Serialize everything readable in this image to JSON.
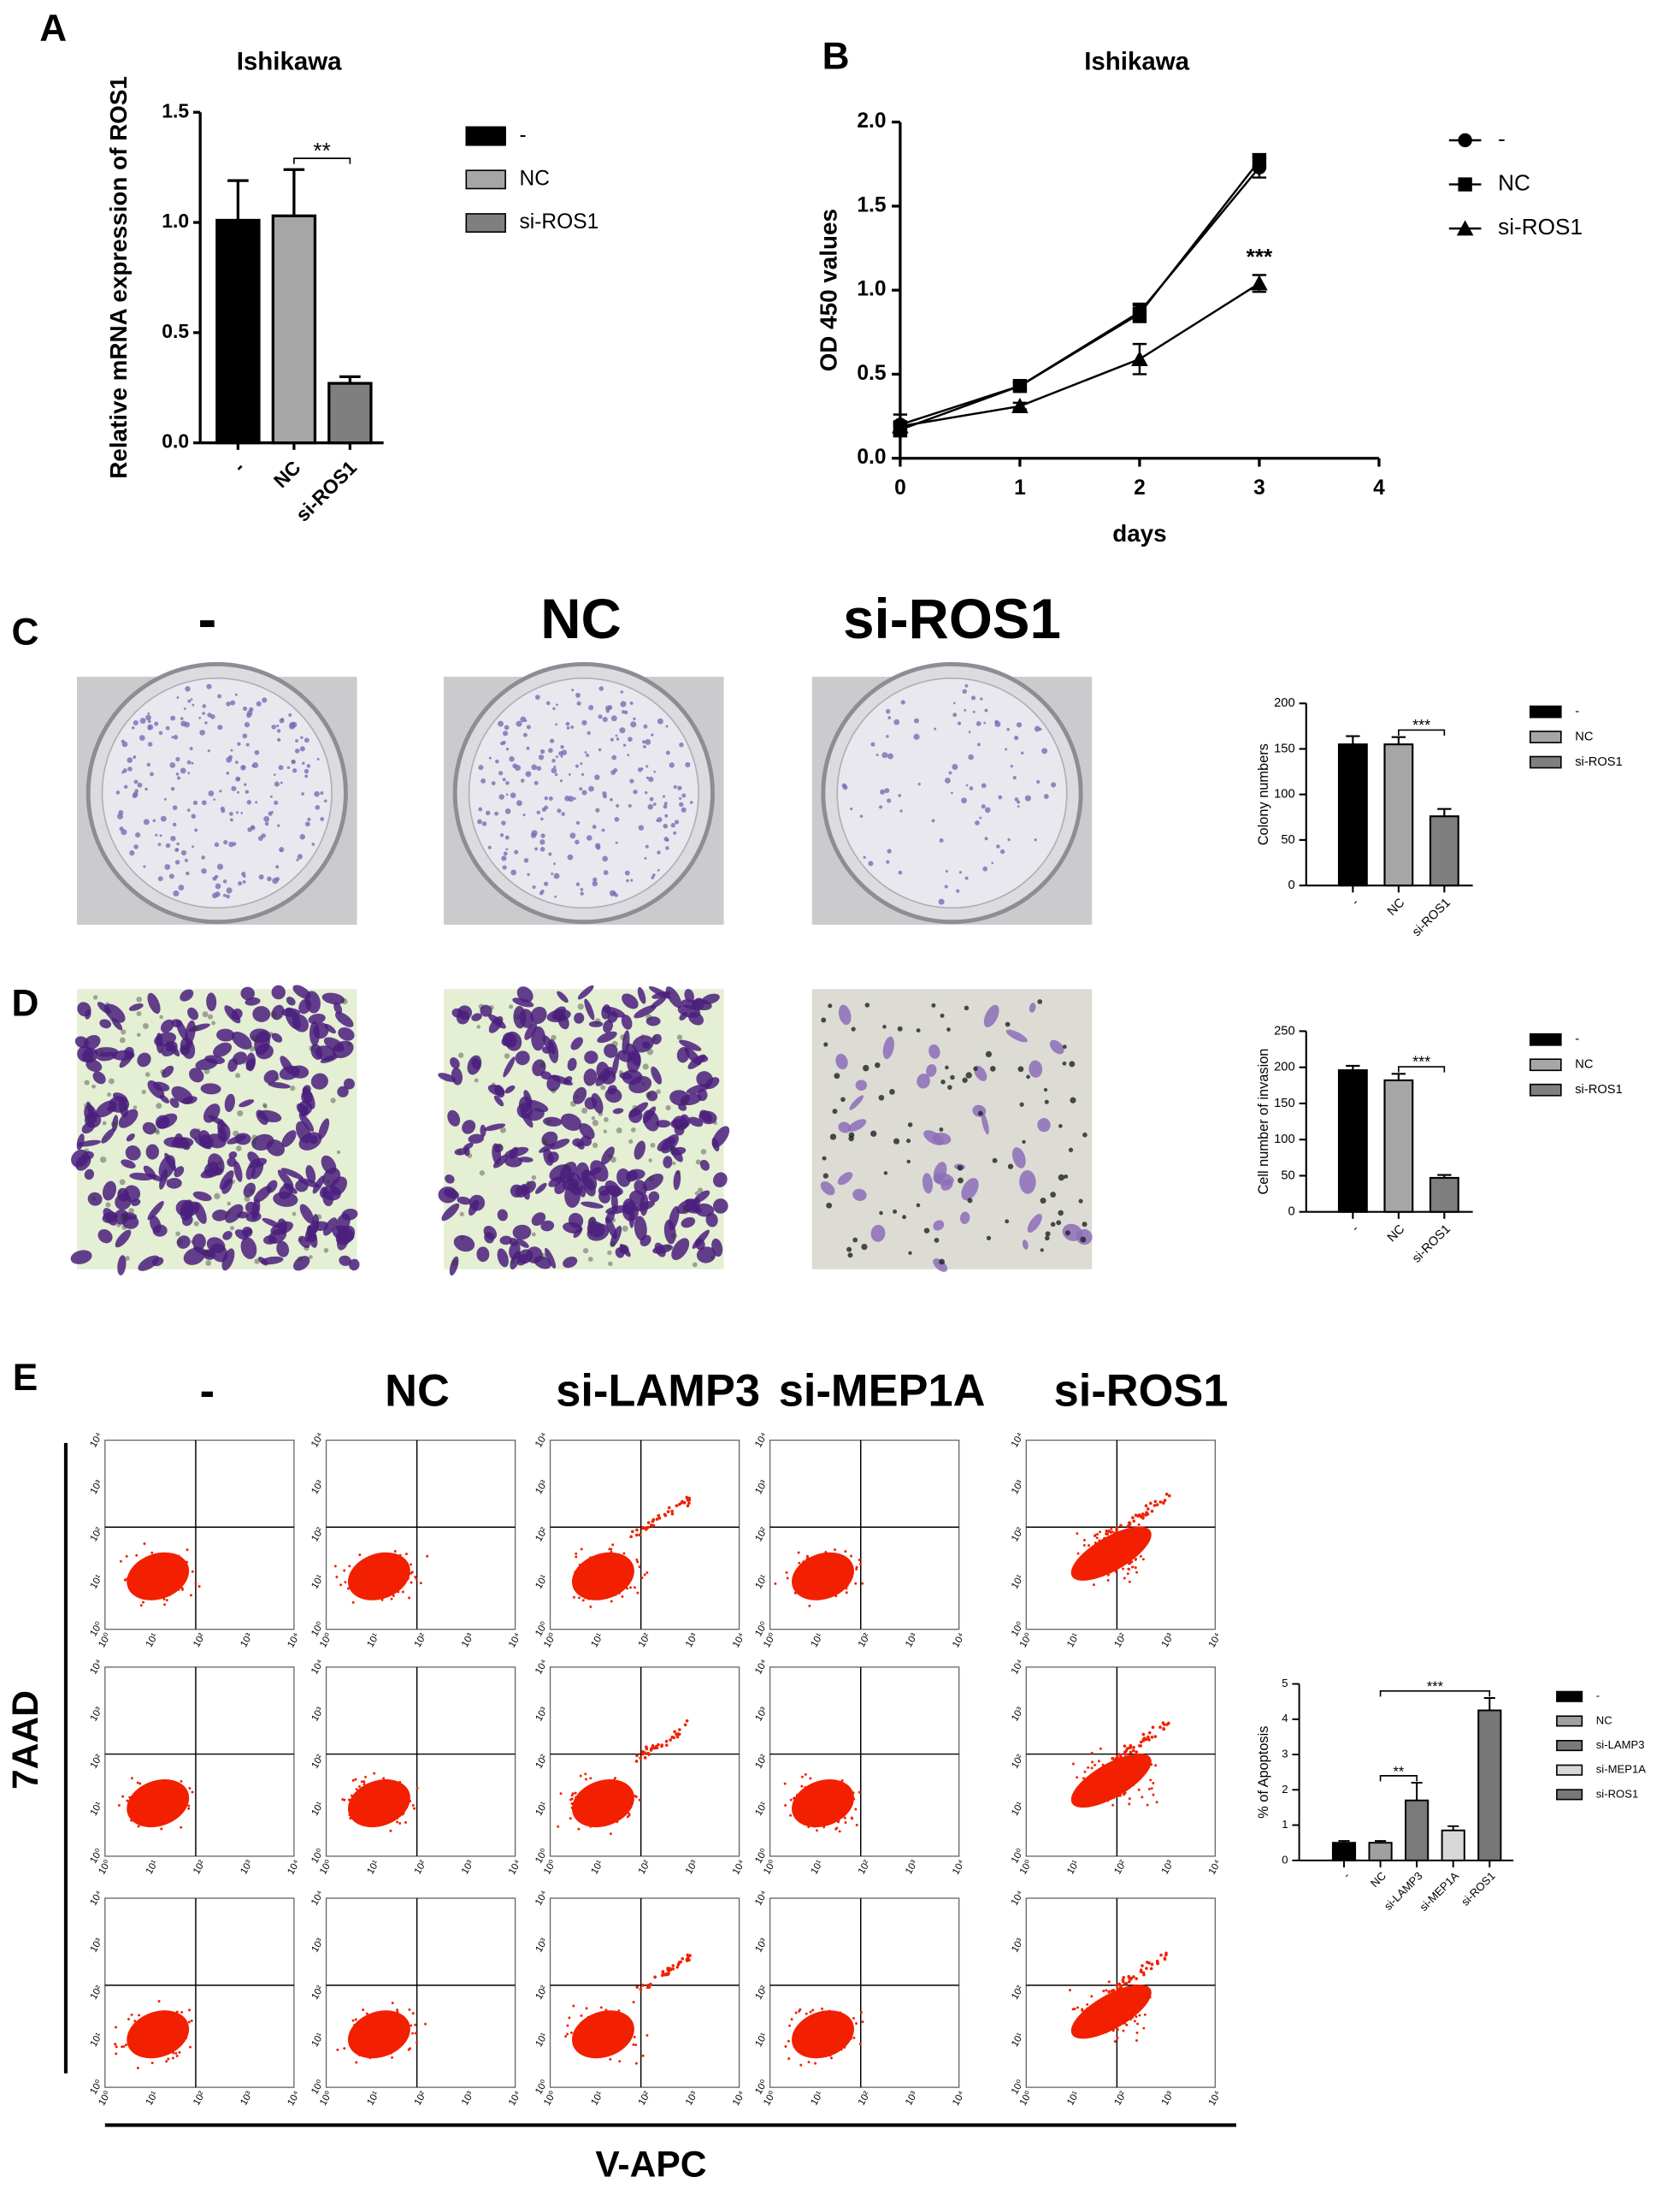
{
  "figure": {
    "panel_labels": [
      "A",
      "B",
      "C",
      "D",
      "E"
    ],
    "c_columns": [
      "-",
      "NC",
      "si-ROS1"
    ],
    "e_columns": [
      "-",
      "NC",
      "si-LAMP3",
      "si-MEP1A",
      "si-ROS1"
    ],
    "e_y_label": "7AAD",
    "e_x_label": "V-APC",
    "flow_ticks": [
      "10⁰",
      "10¹",
      "10²",
      "10³",
      "10⁴"
    ]
  },
  "chart_data": [
    {
      "type": "bar",
      "title": "Ishikawa",
      "y_label": "Relative mRNA expression of  ROS1",
      "categories": [
        "-",
        "NC",
        "si-ROS1"
      ],
      "values": [
        1.01,
        1.03,
        0.27
      ],
      "errors": [
        0.18,
        0.21,
        0.03
      ],
      "colors": [
        "#000000",
        "#a6a6a6",
        "#7f7f7f"
      ],
      "ylim": [
        0,
        1.5
      ],
      "yticks": [
        {
          "value": 0,
          "label": "0.0"
        },
        {
          "value": 0.5,
          "label": "0.5"
        },
        {
          "value": 1,
          "label": "1.0"
        },
        {
          "value": 1.5,
          "label": "1.5"
        }
      ],
      "annotations": [
        {
          "text": "**",
          "between": [
            "NC",
            "si-ROS1"
          ]
        }
      ],
      "legend": "right"
    },
    {
      "type": "line",
      "title": "Ishikawa",
      "x_label": "days",
      "y_label": "OD 450 values",
      "x": [
        0,
        1,
        2,
        3
      ],
      "series": [
        {
          "name": "-",
          "marker": "circle",
          "color": "#000000",
          "values": [
            0.2,
            0.43,
            0.87,
            1.73
          ],
          "errors": [
            0.06,
            0.02,
            0.05,
            0.06
          ]
        },
        {
          "name": "NC",
          "marker": "square",
          "color": "#000000",
          "values": [
            0.17,
            0.43,
            0.86,
            1.77
          ],
          "errors": [
            0.04,
            0.02,
            0.05,
            0.04
          ]
        },
        {
          "name": "si-ROS1",
          "marker": "triangle",
          "color": "#000000",
          "values": [
            0.19,
            0.31,
            0.59,
            1.04
          ],
          "errors": [
            0.03,
            0.02,
            0.09,
            0.05
          ]
        }
      ],
      "xlim": [
        0,
        4
      ],
      "xticks": [
        0,
        1,
        2,
        3,
        4
      ],
      "ylim": [
        0,
        2
      ],
      "yticks": [
        {
          "value": 0,
          "label": "0.0"
        },
        {
          "value": 0.5,
          "label": "0.5"
        },
        {
          "value": 1,
          "label": "1.0"
        },
        {
          "value": 1.5,
          "label": "1.5"
        },
        {
          "value": 2,
          "label": "2.0"
        }
      ],
      "annotations": [
        {
          "text": "***",
          "x": 3
        }
      ],
      "legend": "right"
    },
    {
      "type": "bar",
      "y_label": "Colony numbers",
      "categories": [
        "-",
        "NC",
        "si-ROS1"
      ],
      "values": [
        155,
        155,
        76
      ],
      "errors": [
        9,
        8,
        8
      ],
      "colors": [
        "#000000",
        "#a6a6a6",
        "#7f7f7f"
      ],
      "ylim": [
        0,
        200
      ],
      "yticks": [
        0,
        50,
        100,
        150,
        200
      ],
      "annotations": [
        {
          "text": "***",
          "between": [
            "NC",
            "si-ROS1"
          ]
        }
      ],
      "legend": "right"
    },
    {
      "type": "bar",
      "y_label": "Cell number of invasion",
      "categories": [
        "-",
        "NC",
        "si-ROS1"
      ],
      "values": [
        196,
        182,
        47
      ],
      "errors": [
        6,
        9,
        4
      ],
      "colors": [
        "#000000",
        "#a6a6a6",
        "#7f7f7f"
      ],
      "ylim": [
        0,
        250
      ],
      "yticks": [
        0,
        50,
        100,
        150,
        200,
        250
      ],
      "annotations": [
        {
          "text": "***",
          "between": [
            "NC",
            "si-ROS1"
          ]
        }
      ],
      "legend": "right"
    },
    {
      "type": "bar",
      "y_label": "% of Apoptosis",
      "categories": [
        "-",
        "NC",
        "si-LAMP3",
        "si-MEP1A",
        "si-ROS1"
      ],
      "values": [
        0.5,
        0.5,
        1.7,
        0.85,
        4.25
      ],
      "errors": [
        0.05,
        0.05,
        0.5,
        0.12,
        0.35
      ],
      "colors": [
        "#000000",
        "#a0a0a0",
        "#7a7a7a",
        "#d8d8d8",
        "#777777"
      ],
      "ylim": [
        0,
        5
      ],
      "yticks": [
        0,
        1,
        2,
        3,
        4,
        5
      ],
      "annotations": [
        {
          "text": "***",
          "between": [
            "NC",
            "si-ROS1"
          ]
        },
        {
          "text": "**",
          "between": [
            "NC",
            "si-LAMP3"
          ]
        }
      ],
      "legend": "right"
    }
  ]
}
